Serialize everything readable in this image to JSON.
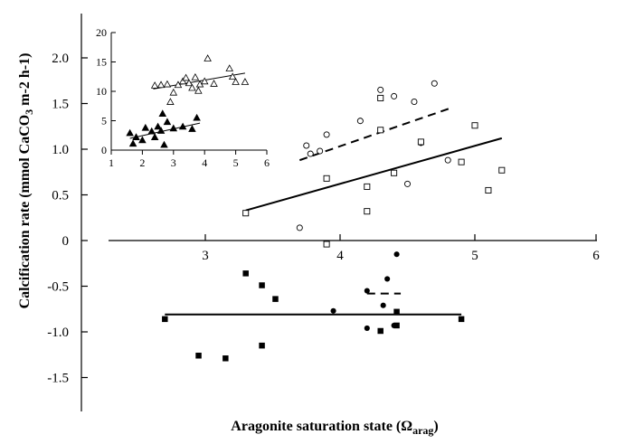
{
  "chart_data": [
    {
      "type": "scatter",
      "role": "main",
      "xlabel": "Aragonite saturation state (Ω",
      "xlabel_sub": "arag",
      "xlabel_end": ")",
      "ylabel": "Calcification rate (mmol CaCO",
      "ylabel_sub": "3",
      "ylabel_end": " m-2 h-1)",
      "xlim": [
        2,
        6
      ],
      "ylim": [
        -1.5,
        2.0
      ],
      "xticks": [
        "3",
        "4",
        "5",
        "6"
      ],
      "xtick_values": [
        3,
        4,
        5,
        6
      ],
      "yticks": [
        "2.0",
        "1.5",
        "1.0",
        "0.5",
        "0",
        "-0.5",
        "-1.0",
        "-1.5"
      ],
      "ytick_values": [
        2.0,
        1.5,
        1.0,
        0.5,
        0,
        -0.5,
        -1.0,
        -1.5
      ],
      "series": [
        {
          "marker": "open-circle",
          "points": [
            [
              3.7,
              0.14
            ],
            [
              3.75,
              1.04
            ],
            [
              3.78,
              0.95
            ],
            [
              3.85,
              0.98
            ],
            [
              3.9,
              1.16
            ],
            [
              4.15,
              1.31
            ],
            [
              4.3,
              1.65
            ],
            [
              4.4,
              1.58
            ],
            [
              4.5,
              0.62
            ],
            [
              4.55,
              1.52
            ],
            [
              4.7,
              1.72
            ],
            [
              4.8,
              0.88
            ],
            [
              4.6,
              1.07
            ]
          ],
          "fit": [
            [
              3.7,
              0.88
            ],
            [
              4.82,
              1.45
            ]
          ],
          "fit_style": "dashed"
        },
        {
          "marker": "open-square",
          "points": [
            [
              3.3,
              0.3
            ],
            [
              3.9,
              0.68
            ],
            [
              3.9,
              -0.04
            ],
            [
              4.2,
              0.32
            ],
            [
              4.2,
              0.59
            ],
            [
              4.3,
              1.56
            ],
            [
              4.3,
              1.21
            ],
            [
              4.4,
              0.74
            ],
            [
              4.6,
              1.08
            ],
            [
              4.9,
              0.86
            ],
            [
              5.0,
              1.26
            ],
            [
              5.1,
              0.55
            ],
            [
              5.2,
              0.77
            ]
          ],
          "fit": [
            [
              3.3,
              0.33
            ],
            [
              5.2,
              1.12
            ]
          ],
          "fit_style": "solid"
        },
        {
          "marker": "filled-circle",
          "points": [
            [
              3.95,
              -0.77
            ],
            [
              4.2,
              -0.55
            ],
            [
              4.2,
              -0.96
            ],
            [
              4.32,
              -0.71
            ],
            [
              4.35,
              -0.42
            ],
            [
              4.4,
              -0.93
            ],
            [
              4.42,
              -0.15
            ]
          ],
          "fit": [
            [
              4.2,
              -0.58
            ],
            [
              4.45,
              -0.58
            ]
          ],
          "fit_style": "dashed"
        },
        {
          "marker": "filled-square",
          "points": [
            [
              2.7,
              -0.86
            ],
            [
              2.95,
              -1.26
            ],
            [
              3.15,
              -1.29
            ],
            [
              3.3,
              -0.36
            ],
            [
              3.42,
              -0.49
            ],
            [
              3.42,
              -1.15
            ],
            [
              3.52,
              -0.64
            ],
            [
              4.3,
              -0.99
            ],
            [
              4.42,
              -0.78
            ],
            [
              4.42,
              -0.93
            ],
            [
              4.9,
              -0.86
            ]
          ],
          "fit": [
            [
              2.7,
              -0.81
            ],
            [
              4.9,
              -0.81
            ]
          ],
          "fit_style": "solid"
        }
      ]
    },
    {
      "type": "scatter",
      "role": "inset",
      "xlim": [
        1,
        6
      ],
      "ylim": [
        0,
        20
      ],
      "xticks": [
        "1",
        "2",
        "3",
        "4",
        "5",
        "6"
      ],
      "xtick_values": [
        1,
        2,
        3,
        4,
        5,
        6
      ],
      "yticks": [
        "20",
        "15",
        "10",
        "5",
        "0"
      ],
      "ytick_values": [
        20,
        15,
        10,
        5,
        0
      ],
      "series": [
        {
          "marker": "open-triangle",
          "points": [
            [
              2.4,
              11
            ],
            [
              2.6,
              11.1
            ],
            [
              2.8,
              11.2
            ],
            [
              2.9,
              8.2
            ],
            [
              3.0,
              9.8
            ],
            [
              3.15,
              11.1
            ],
            [
              3.3,
              11.7
            ],
            [
              3.4,
              12.3
            ],
            [
              3.5,
              11.4
            ],
            [
              3.6,
              10.6
            ],
            [
              3.7,
              12.4
            ],
            [
              3.8,
              10.1
            ],
            [
              3.85,
              11.2
            ],
            [
              4.0,
              11.7
            ],
            [
              4.1,
              15.6
            ],
            [
              4.3,
              11.3
            ],
            [
              4.8,
              13.9
            ],
            [
              4.9,
              12.5
            ],
            [
              5.0,
              11.6
            ],
            [
              5.3,
              11.6
            ]
          ],
          "fit": [
            [
              2.35,
              10.4
            ],
            [
              5.3,
              13.1
            ]
          ]
        },
        {
          "marker": "filled-triangle",
          "points": [
            [
              1.6,
              2.9
            ],
            [
              1.7,
              1.1
            ],
            [
              1.8,
              2.2
            ],
            [
              2.0,
              1.7
            ],
            [
              2.1,
              3.8
            ],
            [
              2.3,
              3.2
            ],
            [
              2.4,
              2.2
            ],
            [
              2.5,
              4.0
            ],
            [
              2.6,
              3.3
            ],
            [
              2.65,
              6.2
            ],
            [
              2.7,
              0.9
            ],
            [
              2.8,
              4.8
            ],
            [
              3.0,
              3.7
            ],
            [
              3.3,
              4.0
            ],
            [
              3.6,
              3.6
            ],
            [
              3.75,
              5.5
            ]
          ],
          "fit": [
            [
              1.6,
              2.0
            ],
            [
              3.85,
              4.6
            ]
          ]
        }
      ]
    }
  ]
}
